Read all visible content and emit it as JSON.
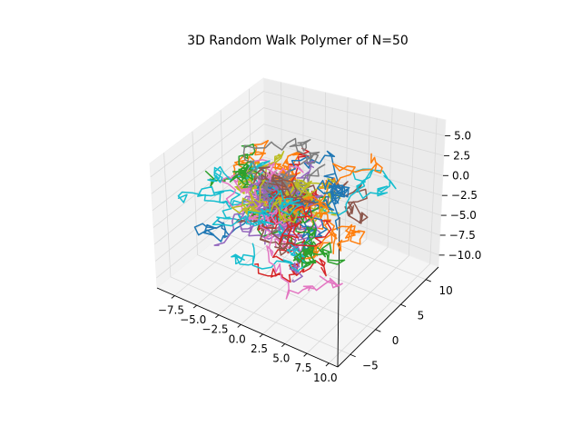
{
  "chart_data": {
    "type": "line3d",
    "title": "3D Random Walk Polymer of N=50",
    "xlim": [
      -9.5,
      11
    ],
    "ylim": [
      -7.5,
      12.5
    ],
    "zlim": [
      -11.5,
      7
    ],
    "x_ticks": [
      -7.5,
      -5.0,
      -2.5,
      0.0,
      2.5,
      5.0,
      7.5,
      10.0
    ],
    "x_tick_labels": [
      "−7.5",
      "−5.0",
      "−2.5",
      "0.0",
      "2.5",
      "5.0",
      "7.5",
      "10.0"
    ],
    "y_ticks": [
      -5,
      0,
      5,
      10
    ],
    "y_tick_labels": [
      "−5",
      "0",
      "5",
      "10"
    ],
    "z_ticks": [
      -10.0,
      -7.5,
      -5.0,
      -2.5,
      0.0,
      2.5,
      5.0
    ],
    "z_tick_labels": [
      "−10.0",
      "−7.5",
      "−5.0",
      "−2.5",
      "0.0",
      "2.5",
      "5.0"
    ],
    "grid": true,
    "n_walks": 50,
    "steps_per_walk": 50,
    "colors": [
      "#1f77b4",
      "#ff7f0e",
      "#2ca02c",
      "#d62728",
      "#9467bd",
      "#8c564b",
      "#e377c2",
      "#7f7f7f",
      "#bcbd22",
      "#17becf"
    ]
  }
}
